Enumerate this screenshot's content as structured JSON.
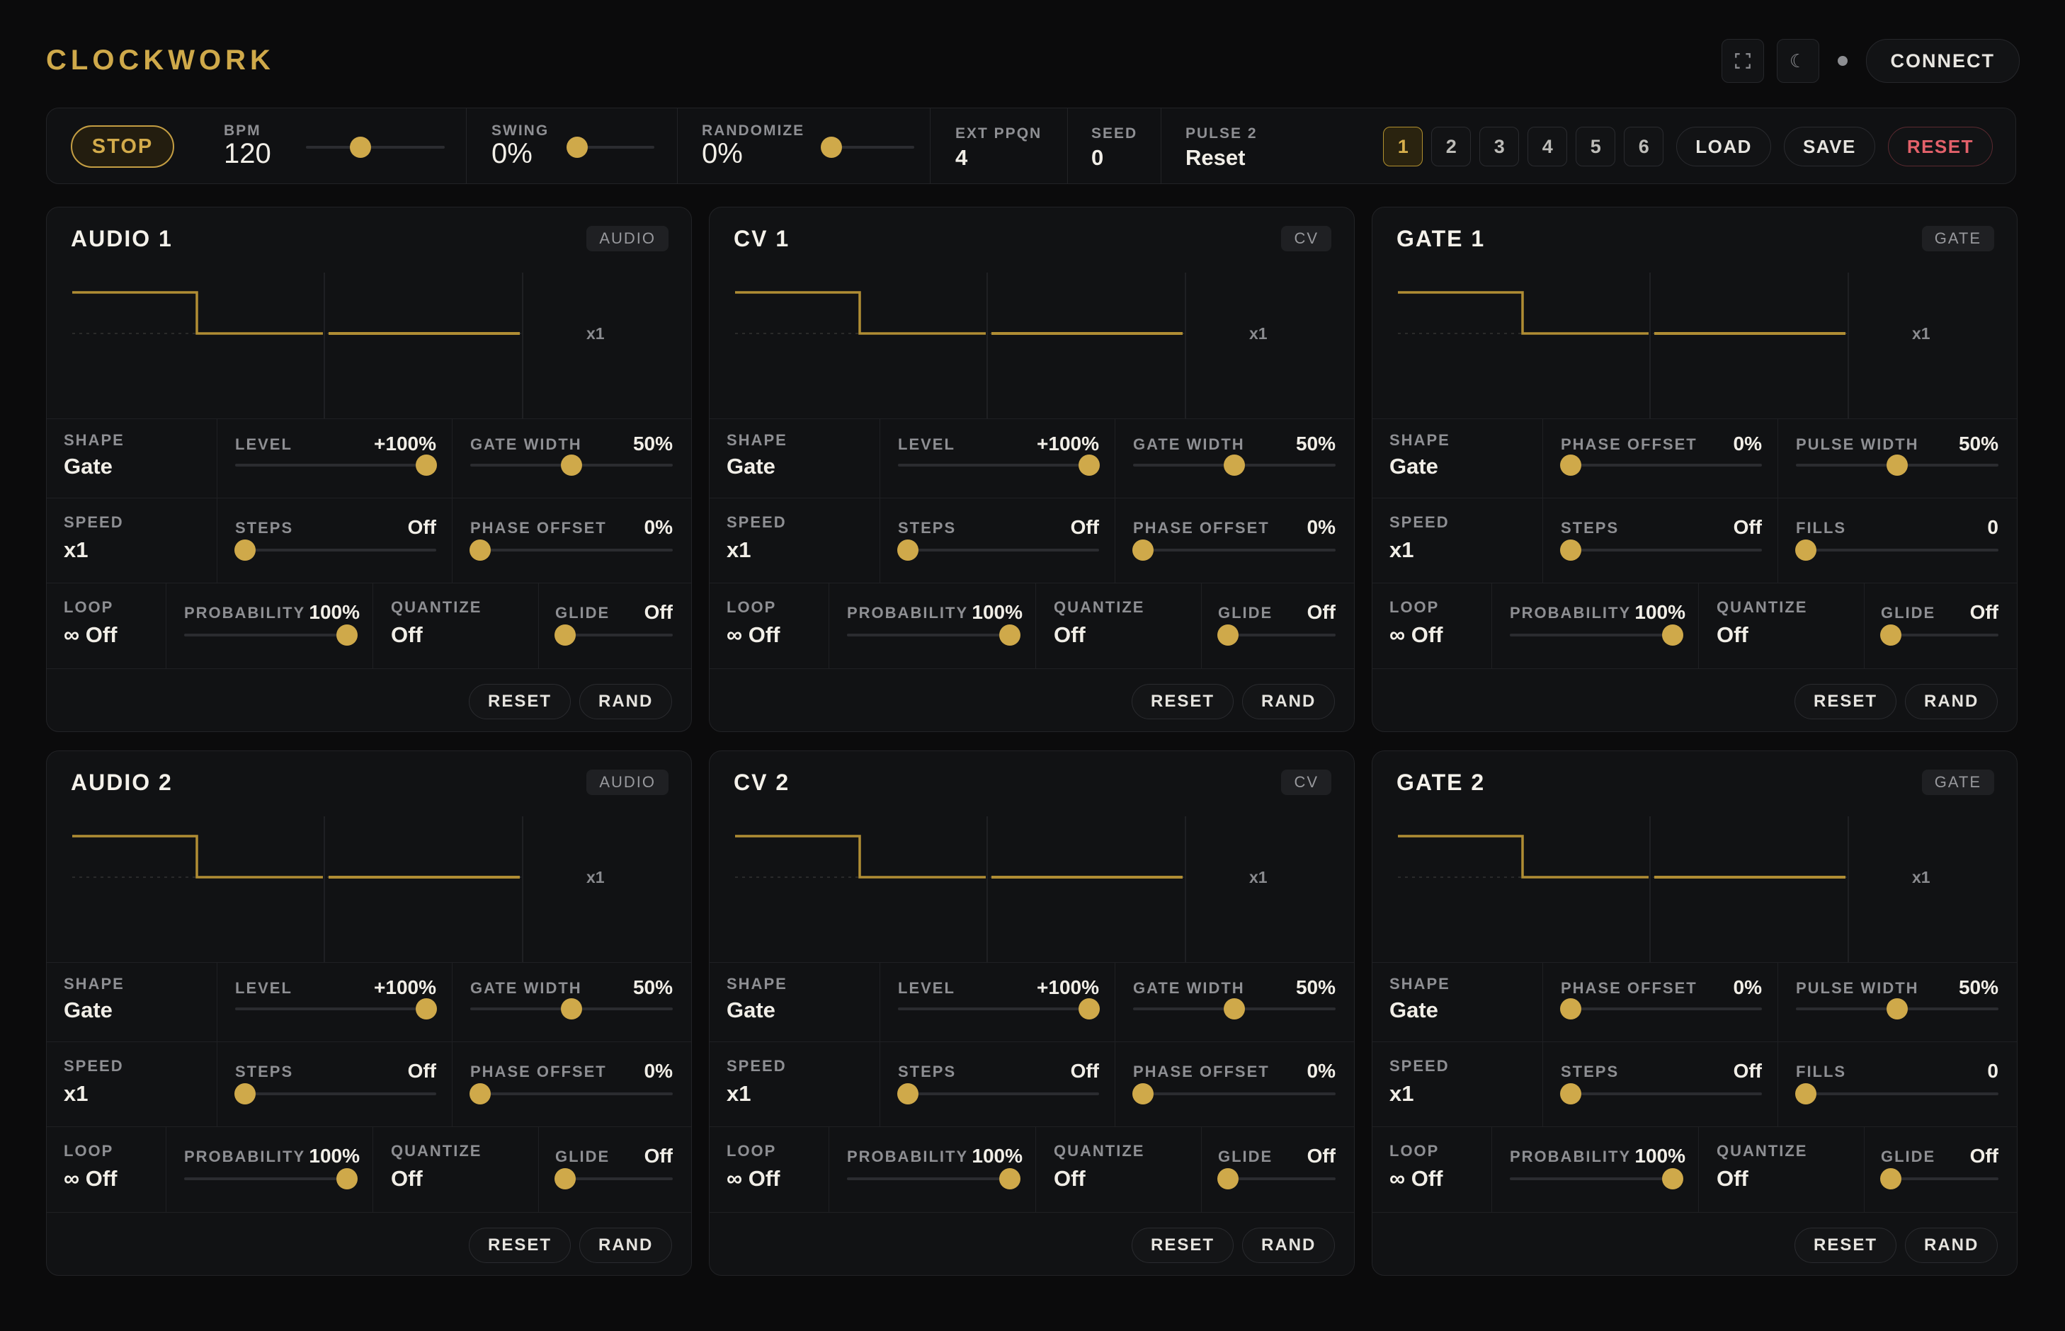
{
  "app": {
    "title": "CLOCKWORK"
  },
  "header": {
    "fullscreen_icon": "fullscreen-icon",
    "theme_icon": "moon-icon",
    "connect_label": "CONNECT"
  },
  "transport": {
    "stop_label": "STOP",
    "bpm": {
      "label": "BPM",
      "value": "120",
      "slider": 0.4
    },
    "swing": {
      "label": "SWING",
      "value": "0%",
      "slider": 0.0
    },
    "randomize": {
      "label": "RANDOMIZE",
      "value": "0%",
      "slider": 0.0
    },
    "ext_ppqn": {
      "label": "EXT PPQN",
      "value": "4"
    },
    "seed": {
      "label": "SEED",
      "value": "0"
    },
    "pulse2": {
      "label": "PULSE 2",
      "value": "Reset"
    },
    "presets": [
      "1",
      "2",
      "3",
      "4",
      "5",
      "6"
    ],
    "active_preset": "1",
    "load_label": "LOAD",
    "save_label": "SAVE",
    "reset_label": "RESET"
  },
  "colors": {
    "accent": "#cfa94a",
    "danger": "#e3616a",
    "bg": "#0b0b0c",
    "panel": "#111214"
  },
  "channels": [
    {
      "title": "AUDIO 1",
      "badge": "AUDIO",
      "kind": "audio",
      "mult": "x1",
      "shape": {
        "label": "SHAPE",
        "value": "Gate"
      },
      "p1": {
        "label": "LEVEL",
        "value": "+100%",
        "slider": 1.0
      },
      "p2": {
        "label": "GATE WIDTH",
        "value": "50%",
        "slider": 0.5
      },
      "speed": {
        "label": "SPEED",
        "value": "x1"
      },
      "steps": {
        "label": "STEPS",
        "value": "Off",
        "slider": 0.0
      },
      "p3": {
        "label": "PHASE OFFSET",
        "value": "0%",
        "slider": 0.0
      },
      "loop": {
        "label": "LOOP",
        "value": "∞ Off"
      },
      "probability": {
        "label": "PROBABILITY",
        "value": "100%",
        "slider": 1.0
      },
      "quantize": {
        "label": "QUANTIZE",
        "value": "Off"
      },
      "glide": {
        "label": "GLIDE",
        "value": "Off",
        "slider": 0.0
      },
      "reset_label": "RESET",
      "rand_label": "RAND"
    },
    {
      "title": "CV 1",
      "badge": "CV",
      "kind": "cv",
      "mult": "x1",
      "shape": {
        "label": "SHAPE",
        "value": "Gate"
      },
      "p1": {
        "label": "LEVEL",
        "value": "+100%",
        "slider": 1.0
      },
      "p2": {
        "label": "GATE WIDTH",
        "value": "50%",
        "slider": 0.5
      },
      "speed": {
        "label": "SPEED",
        "value": "x1"
      },
      "steps": {
        "label": "STEPS",
        "value": "Off",
        "slider": 0.0
      },
      "p3": {
        "label": "PHASE OFFSET",
        "value": "0%",
        "slider": 0.0
      },
      "loop": {
        "label": "LOOP",
        "value": "∞ Off"
      },
      "probability": {
        "label": "PROBABILITY",
        "value": "100%",
        "slider": 1.0
      },
      "quantize": {
        "label": "QUANTIZE",
        "value": "Off"
      },
      "glide": {
        "label": "GLIDE",
        "value": "Off",
        "slider": 0.0
      },
      "reset_label": "RESET",
      "rand_label": "RAND"
    },
    {
      "title": "GATE 1",
      "badge": "GATE",
      "kind": "gate",
      "mult": "x1",
      "shape": {
        "label": "SHAPE",
        "value": "Gate"
      },
      "p1": {
        "label": "PHASE OFFSET",
        "value": "0%",
        "slider": 0.0
      },
      "p2": {
        "label": "PULSE WIDTH",
        "value": "50%",
        "slider": 0.5
      },
      "speed": {
        "label": "SPEED",
        "value": "x1"
      },
      "steps": {
        "label": "STEPS",
        "value": "Off",
        "slider": 0.0
      },
      "p3": {
        "label": "FILLS",
        "value": "0",
        "slider": 0.0
      },
      "loop": {
        "label": "LOOP",
        "value": "∞ Off"
      },
      "probability": {
        "label": "PROBABILITY",
        "value": "100%",
        "slider": 1.0
      },
      "quantize": {
        "label": "QUANTIZE",
        "value": "Off"
      },
      "glide": {
        "label": "GLIDE",
        "value": "Off",
        "slider": 0.0
      },
      "reset_label": "RESET",
      "rand_label": "RAND"
    },
    {
      "title": "AUDIO 2",
      "badge": "AUDIO",
      "kind": "audio",
      "mult": "x1",
      "shape": {
        "label": "SHAPE",
        "value": "Gate"
      },
      "p1": {
        "label": "LEVEL",
        "value": "+100%",
        "slider": 1.0
      },
      "p2": {
        "label": "GATE WIDTH",
        "value": "50%",
        "slider": 0.5
      },
      "speed": {
        "label": "SPEED",
        "value": "x1"
      },
      "steps": {
        "label": "STEPS",
        "value": "Off",
        "slider": 0.0
      },
      "p3": {
        "label": "PHASE OFFSET",
        "value": "0%",
        "slider": 0.0
      },
      "loop": {
        "label": "LOOP",
        "value": "∞ Off"
      },
      "probability": {
        "label": "PROBABILITY",
        "value": "100%",
        "slider": 1.0
      },
      "quantize": {
        "label": "QUANTIZE",
        "value": "Off"
      },
      "glide": {
        "label": "GLIDE",
        "value": "Off",
        "slider": 0.0
      },
      "reset_label": "RESET",
      "rand_label": "RAND"
    },
    {
      "title": "CV 2",
      "badge": "CV",
      "kind": "cv",
      "mult": "x1",
      "shape": {
        "label": "SHAPE",
        "value": "Gate"
      },
      "p1": {
        "label": "LEVEL",
        "value": "+100%",
        "slider": 1.0
      },
      "p2": {
        "label": "GATE WIDTH",
        "value": "50%",
        "slider": 0.5
      },
      "speed": {
        "label": "SPEED",
        "value": "x1"
      },
      "steps": {
        "label": "STEPS",
        "value": "Off",
        "slider": 0.0
      },
      "p3": {
        "label": "PHASE OFFSET",
        "value": "0%",
        "slider": 0.0
      },
      "loop": {
        "label": "LOOP",
        "value": "∞ Off"
      },
      "probability": {
        "label": "PROBABILITY",
        "value": "100%",
        "slider": 1.0
      },
      "quantize": {
        "label": "QUANTIZE",
        "value": "Off"
      },
      "glide": {
        "label": "GLIDE",
        "value": "Off",
        "slider": 0.0
      },
      "reset_label": "RESET",
      "rand_label": "RAND"
    },
    {
      "title": "GATE 2",
      "badge": "GATE",
      "kind": "gate",
      "mult": "x1",
      "shape": {
        "label": "SHAPE",
        "value": "Gate"
      },
      "p1": {
        "label": "PHASE OFFSET",
        "value": "0%",
        "slider": 0.0
      },
      "p2": {
        "label": "PULSE WIDTH",
        "value": "50%",
        "slider": 0.5
      },
      "speed": {
        "label": "SPEED",
        "value": "x1"
      },
      "steps": {
        "label": "STEPS",
        "value": "Off",
        "slider": 0.0
      },
      "p3": {
        "label": "FILLS",
        "value": "0",
        "slider": 0.0
      },
      "loop": {
        "label": "LOOP",
        "value": "∞ Off"
      },
      "probability": {
        "label": "PROBABILITY",
        "value": "100%",
        "slider": 1.0
      },
      "quantize": {
        "label": "QUANTIZE",
        "value": "Off"
      },
      "glide": {
        "label": "GLIDE",
        "value": "Off",
        "slider": 0.0
      },
      "reset_label": "RESET",
      "rand_label": "RAND"
    }
  ]
}
